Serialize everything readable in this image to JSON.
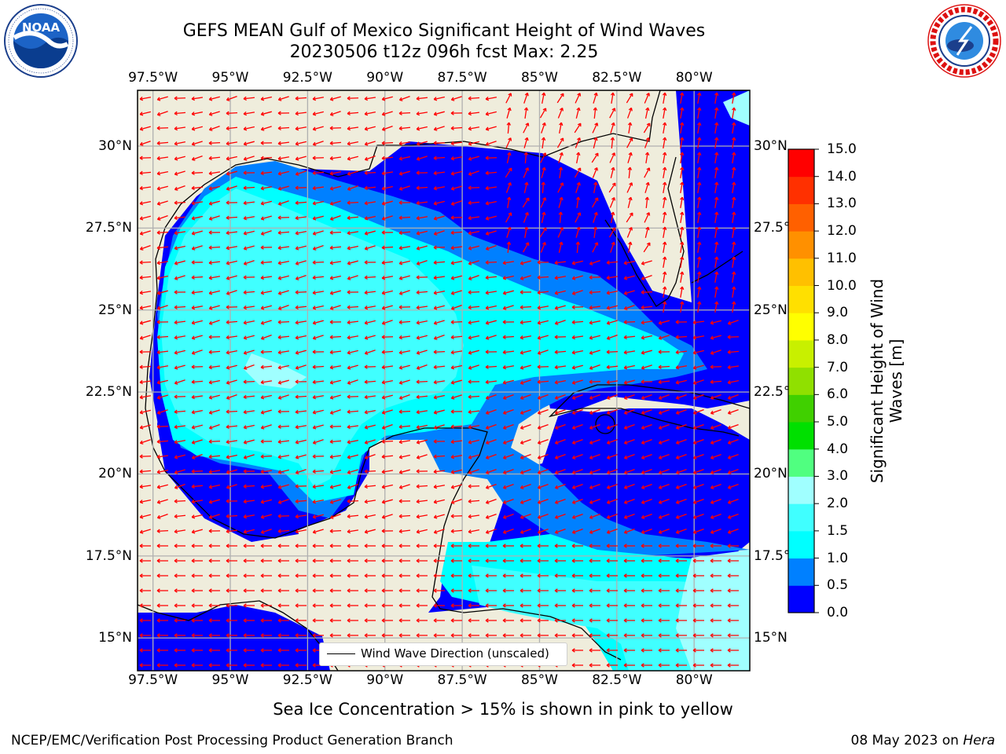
{
  "header": {
    "title_line1": "GEFS MEAN Gulf of Mexico Significant Height of Wind Waves",
    "title_line2": "20230506 t12z 096h fcst   Max: 2.25"
  },
  "logos": {
    "left": {
      "text": "NOAA",
      "ring_text": "NATIONAL OCEANIC AND ATMOSPHERIC ADMINISTRATION · U.S. DEPARTMENT OF COMMERCE"
    },
    "right": {
      "ring_text": "NATIONAL WEATHER SERVICE"
    }
  },
  "map": {
    "lon_ticks": [
      "97.5°W",
      "95°W",
      "92.5°W",
      "90°W",
      "87.5°W",
      "85°W",
      "82.5°W",
      "80°W"
    ],
    "lat_ticks": [
      "30°N",
      "27.5°N",
      "25°N",
      "22.5°N",
      "20°N",
      "17.5°N",
      "15°N"
    ],
    "lon_range": [
      -98,
      -78.2
    ],
    "lat_range": [
      14,
      31.7
    ],
    "gridlines": true,
    "land_color": "#efeddc",
    "legend_label": "Wind Wave Direction (unscaled)",
    "arrow_color": "#ff0000"
  },
  "colorbar": {
    "label_line1": "Significant Height of Wind",
    "label_line2": "Waves [m]",
    "ticks": [
      "0.0",
      "0.5",
      "1.0",
      "1.5",
      "2.0",
      "3.0",
      "4.0",
      "5.0",
      "6.0",
      "7.0",
      "8.0",
      "9.0",
      "10.0",
      "11.0",
      "12.0",
      "13.0",
      "14.0",
      "15.0"
    ],
    "colors": [
      "#0000ff",
      "#0080ff",
      "#00ffff",
      "#40ffff",
      "#a0ffff",
      "#50ff80",
      "#00e000",
      "#40d000",
      "#90e000",
      "#c8f000",
      "#ffff00",
      "#ffe000",
      "#ffc000",
      "#ff9000",
      "#ff6000",
      "#ff3000",
      "#ff0000"
    ]
  },
  "note": "Sea Ice Concentration > 15% is shown in pink to yellow",
  "footer": {
    "left": "NCEP/EMC/Verification Post Processing Product Generation Branch",
    "right_date": "08 May 2023 on",
    "right_host": "Hera"
  }
}
